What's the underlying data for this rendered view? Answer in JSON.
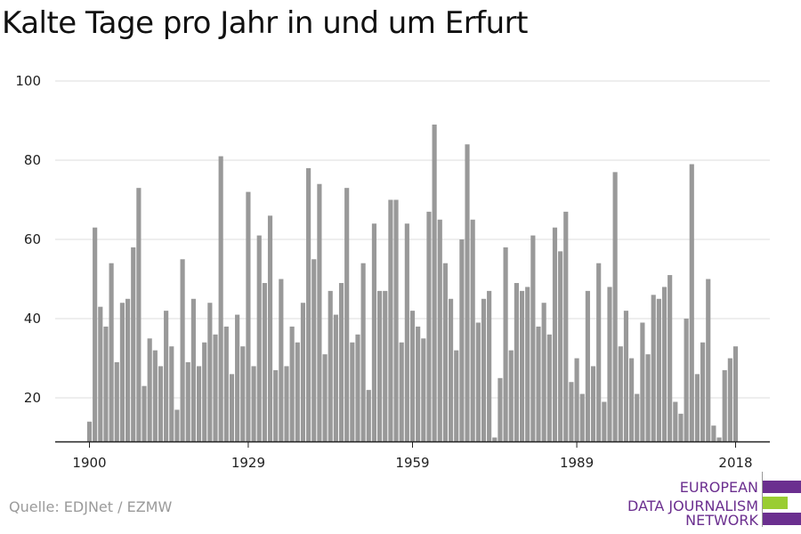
{
  "title": "Kalte Tage pro Jahr in und um Erfurt",
  "source": "Quelle: EDJNet / EZMW",
  "logo": {
    "lines": [
      "EUROPEAN",
      "DATA JOURNALISM",
      "NETWORK"
    ],
    "colors": {
      "text": "#6b2f8f",
      "purple": "#6b2f8f",
      "green": "#9acd32"
    }
  },
  "colors": {
    "bar": "#999999",
    "grid": "#dddddd",
    "axis": "#222222"
  },
  "chart_data": {
    "type": "bar",
    "x_start": 1900,
    "x_end": 2018,
    "xticks": [
      1900,
      1929,
      1959,
      1989,
      2018
    ],
    "yticks": [
      20,
      40,
      60,
      80,
      100
    ],
    "ylim": [
      9,
      100
    ],
    "grid": true,
    "values": [
      14,
      63,
      43,
      38,
      54,
      29,
      44,
      45,
      58,
      73,
      23,
      35,
      32,
      28,
      42,
      33,
      17,
      55,
      29,
      45,
      28,
      34,
      44,
      36,
      81,
      38,
      26,
      41,
      33,
      72,
      28,
      61,
      49,
      66,
      27,
      50,
      28,
      38,
      34,
      44,
      78,
      55,
      74,
      31,
      47,
      41,
      49,
      73,
      34,
      36,
      54,
      22,
      64,
      47,
      47,
      70,
      70,
      34,
      64,
      42,
      38,
      35,
      67,
      89,
      65,
      54,
      45,
      32,
      60,
      84,
      65,
      39,
      45,
      47,
      10,
      25,
      58,
      32,
      49,
      47,
      48,
      61,
      38,
      44,
      36,
      63,
      57,
      67,
      24,
      30,
      21,
      47,
      28,
      54,
      19,
      48,
      77,
      33,
      42,
      30,
      21,
      39,
      31,
      46,
      45,
      48,
      51,
      19,
      16,
      40,
      79,
      26,
      34,
      50,
      13,
      10,
      27,
      30,
      33
    ]
  }
}
